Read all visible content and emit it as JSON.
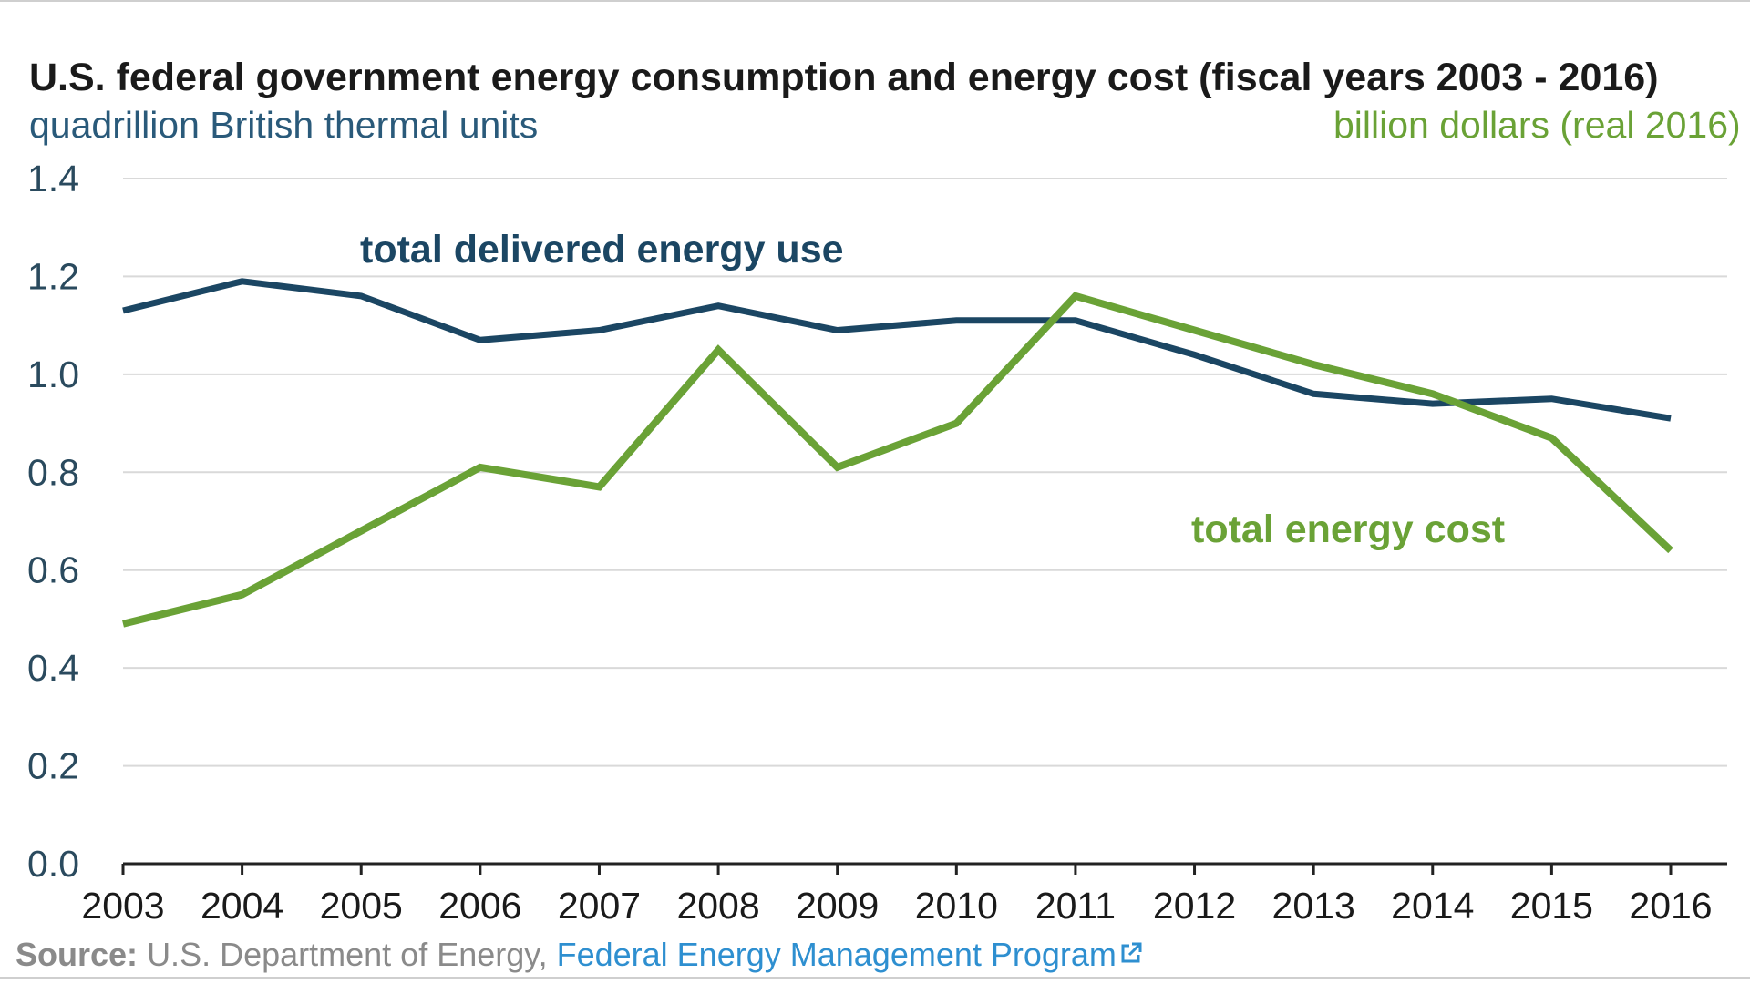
{
  "source": {
    "label": "Source:",
    "text": "U.S. Department of Energy,",
    "link_text": "Federal Energy Management Program",
    "link_icon": "external-link-icon"
  },
  "colors": {
    "energy_use": "#1b4663",
    "energy_cost": "#6aa236",
    "axis_text": "#2a4a5e",
    "link": "#2e8fd0"
  },
  "chart_data": {
    "type": "line",
    "title": "U.S. federal government energy consumption and energy cost (fiscal years 2003 - 2016)",
    "left_axis_label": "quadrillion British thermal units",
    "right_axis_label": "billion dollars (real 2016)",
    "x": [
      "2003",
      "2004",
      "2005",
      "2006",
      "2007",
      "2008",
      "2009",
      "2010",
      "2011",
      "2012",
      "2013",
      "2014",
      "2015",
      "2016"
    ],
    "ylim": [
      0,
      1.4
    ],
    "yticks": [
      "0.0",
      "0.2",
      "0.4",
      "0.6",
      "0.8",
      "1.0",
      "1.2",
      "1.4"
    ],
    "grid": true,
    "series": [
      {
        "name": "total delivered energy use",
        "axis": "left",
        "values": [
          1.13,
          1.19,
          1.16,
          1.07,
          1.09,
          1.14,
          1.09,
          1.11,
          1.11,
          1.04,
          0.96,
          0.94,
          0.95,
          0.91
        ]
      },
      {
        "name": "total energy cost",
        "axis": "right",
        "values": [
          0.49,
          0.55,
          0.68,
          0.81,
          0.77,
          1.05,
          0.81,
          0.9,
          1.16,
          1.09,
          1.02,
          0.96,
          0.87,
          0.64
        ]
      }
    ]
  }
}
